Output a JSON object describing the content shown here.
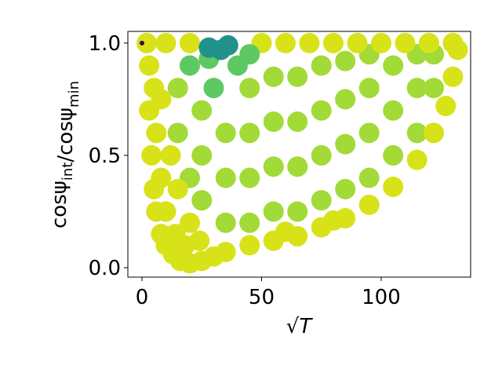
{
  "chart_data": {
    "type": "scatter",
    "xlabel": "√T",
    "ylabel": [
      {
        "text": "cosψ"
      },
      {
        "sub": "int"
      },
      {
        "text": "/cosψ"
      },
      {
        "sub": "min"
      }
    ],
    "xlim": [
      -5.9,
      137.4
    ],
    "ylim": [
      -0.042,
      1.052
    ],
    "xticks": [
      0,
      50,
      100
    ],
    "yticks": [
      {
        "value": 0,
        "label": "0.0"
      },
      {
        "value": 0.5,
        "label": "0.5"
      },
      {
        "value": 1,
        "label": "1.0"
      }
    ],
    "grid": false,
    "series": [
      {
        "color": "#a2da37",
        "x": [
          25,
          25,
          25,
          35,
          35,
          35,
          45,
          45,
          45,
          45,
          55,
          55,
          55,
          55,
          65,
          65,
          65,
          65,
          75,
          75,
          75,
          75,
          85,
          85,
          85,
          85,
          95,
          95,
          95,
          95,
          105,
          105,
          105,
          115,
          115,
          115,
          122,
          122,
          15,
          15,
          20
        ],
        "y": [
          0.3,
          0.5,
          0.7,
          0.2,
          0.4,
          0.6,
          0.2,
          0.4,
          0.6,
          0.8,
          0.25,
          0.45,
          0.65,
          0.85,
          0.25,
          0.45,
          0.65,
          0.85,
          0.3,
          0.5,
          0.7,
          0.9,
          0.35,
          0.55,
          0.75,
          0.92,
          0.4,
          0.6,
          0.8,
          0.95,
          0.5,
          0.7,
          0.9,
          0.6,
          0.8,
          0.95,
          0.8,
          0.95,
          0.6,
          0.8,
          0.4
        ]
      },
      {
        "color": "#d8e219",
        "x": [
          2,
          10,
          20,
          50,
          60,
          70,
          80,
          90,
          100,
          110,
          120,
          130,
          3,
          3,
          4,
          5,
          6,
          8,
          10,
          13,
          16,
          20,
          25,
          30,
          8,
          10,
          14,
          18,
          6,
          5,
          8,
          12,
          15,
          20,
          24,
          35,
          45,
          55,
          65,
          75,
          85,
          95,
          105,
          115,
          122,
          127,
          130,
          132,
          60,
          80
        ],
        "y": [
          1,
          1,
          1,
          1,
          1,
          1,
          1,
          1,
          1,
          1,
          1,
          1,
          0.9,
          0.7,
          0.5,
          0.35,
          0.25,
          0.15,
          0.1,
          0.06,
          0.03,
          0.02,
          0.03,
          0.05,
          0.4,
          0.25,
          0.15,
          0.1,
          0.6,
          0.8,
          0.75,
          0.5,
          0.35,
          0.2,
          0.12,
          0.07,
          0.1,
          0.12,
          0.14,
          0.18,
          0.22,
          0.28,
          0.36,
          0.48,
          0.6,
          0.72,
          0.85,
          0.97,
          0.16,
          0.21
        ]
      },
      {
        "color": "#5ec962",
        "x": [
          30,
          40,
          45,
          20,
          28
        ],
        "y": [
          0.8,
          0.9,
          0.95,
          0.9,
          0.93
        ]
      },
      {
        "color": "#21918c",
        "x": [
          28,
          33,
          36
        ],
        "y": [
          0.98,
          0.97,
          0.99
        ]
      },
      {
        "color": "#440154",
        "x": [
          0
        ],
        "y": [
          1
        ]
      }
    ]
  }
}
